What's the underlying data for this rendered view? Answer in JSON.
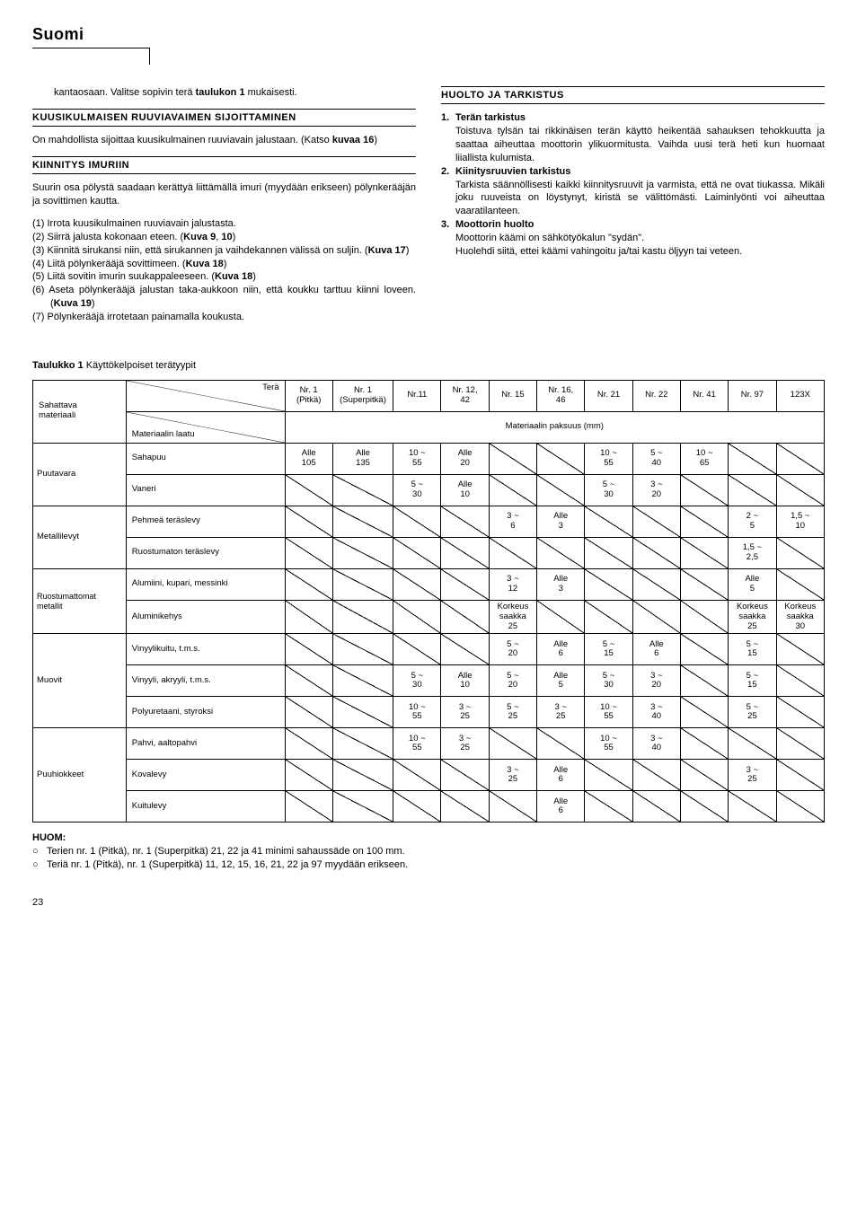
{
  "header": {
    "title": "Suomi"
  },
  "left": {
    "intro": {
      "prefix": "kantaosaan. Valitse sopivin terä ",
      "bold": "taulukon 1",
      "suffix": " mukaisesti."
    },
    "sec1": {
      "title": "KUUSIKULMAISEN RUUVIAVAIMEN SIJOITTAMINEN",
      "p1a": "On mahdollista sijoittaa kuusikulmainen ruuviavain jalustaan. (Katso ",
      "p1b": "kuvaa 16",
      "p1c": ")"
    },
    "sec2": {
      "title": "KIINNITYS IMURIIN",
      "p1": "Suurin osa pölystä saadaan kerättyä liittämällä imuri (myydään erikseen) pölynkerääjän ja sovittimen kautta.",
      "items": [
        {
          "n": "(1)",
          "t": "Irrota kuusikulmainen ruuviavain jalustasta."
        },
        {
          "n": "(2)",
          "t": "Siirrä jalusta kokonaan eteen. (",
          "b": "Kuva 9",
          "m": ", ",
          "b2": "10",
          "e": ")"
        },
        {
          "n": "(3)",
          "t": "Kiinnitä sirukansi niin, että sirukannen ja vaihdekannen välissä on suljin. (",
          "b": "Kuva 17",
          "e": ")"
        },
        {
          "n": "(4)",
          "t": "Liitä pölynkerääjä sovittimeen. (",
          "b": "Kuva 18",
          "e": ")"
        },
        {
          "n": "(5)",
          "t": "Liitä sovitin imurin suukappaleeseen. (",
          "b": "Kuva 18",
          "e": ")"
        },
        {
          "n": "(6)",
          "t": "Aseta pölynkerääjä jalustan taka-aukkoon niin, että koukku tarttuu kiinni loveen. (",
          "b": "Kuva 19",
          "e": ")"
        },
        {
          "n": "(7)",
          "t": "Pölynkerääjä irrotetaan painamalla koukusta."
        }
      ]
    }
  },
  "right": {
    "title": "HUOLTO JA TARKISTUS",
    "items": [
      {
        "n": "1.",
        "h": "Terän tarkistus",
        "t": "Toistuva tylsän tai rikkinäisen terän käyttö heikentää sahauksen tehokkuutta ja saattaa aiheuttaa moottorin ylikuormitusta. Vaihda uusi terä heti kun huomaat liiallista kulumista."
      },
      {
        "n": "2.",
        "h": "Kiinitysruuvien tarkistus",
        "t": "Tarkista säännöllisesti kaikki kiinnitysruuvit ja varmista, että ne ovat tiukassa. Mikäli joku ruuveista on löystynyt, kiristä se välittömästi. Laiminlyönti voi aiheuttaa vaaratilanteen."
      },
      {
        "n": "3.",
        "h": "Moottorin huolto",
        "t": "Moottorin käämi on sähkötyökalun \"sydän\".\nHuolehdi siitä, ettei käämi vahingoitu ja/tai kastu öljyyn tai veteen."
      }
    ]
  },
  "table": {
    "caption_b": "Taulukko 1",
    "caption_t": "   Käyttökelpoiset terätyypit",
    "diag_top": "Terä",
    "diag_bot": "Materiaalin laatu",
    "rowhead_left": "Sahattava materiaali",
    "cols": [
      "Nr. 1\n(Pitkä)",
      "Nr. 1\n(Superpitkä)",
      "Nr.11",
      "Nr. 12,\n42",
      "Nr. 15",
      "Nr. 16,\n46",
      "Nr. 21",
      "Nr. 22",
      "Nr. 41",
      "Nr. 97",
      "123X"
    ],
    "span_label": "Materiaalin paksuus (mm)",
    "groups": [
      {
        "cat": "Puutavara",
        "rows": [
          {
            "label": "Sahapuu",
            "cells": [
              "Alle\n105",
              "Alle\n135",
              "10 ~\n55",
              "Alle\n20",
              "",
              "",
              "10 ~\n55",
              "5 ~\n40",
              "10 ~\n65",
              "",
              ""
            ]
          },
          {
            "label": "Vaneri",
            "cells": [
              "",
              "",
              "5 ~\n30",
              "Alle\n10",
              "",
              "",
              "5 ~\n30",
              "3 ~\n20",
              "",
              "",
              ""
            ]
          }
        ]
      },
      {
        "cat": "Metallilevyt",
        "rows": [
          {
            "label": "Pehmeä teräslevy",
            "cells": [
              "",
              "",
              "",
              "",
              "3 ~\n6",
              "Alle\n3",
              "",
              "",
              "",
              "2 ~\n5",
              "1,5 ~\n10"
            ]
          },
          {
            "label": "Ruostumaton teräslevy",
            "cells": [
              "",
              "",
              "",
              "",
              "",
              "",
              "",
              "",
              "",
              "1,5 ~\n2,5",
              ""
            ]
          }
        ]
      },
      {
        "cat": "Ruostumattomat metallit",
        "rows": [
          {
            "label": "Alumiini, kupari, messinki",
            "cells": [
              "",
              "",
              "",
              "",
              "3 ~\n12",
              "Alle\n3",
              "",
              "",
              "",
              "Alle\n5",
              ""
            ]
          },
          {
            "label": "Aluminikehys",
            "cells": [
              "",
              "",
              "",
              "",
              "Korkeus\nsaakka\n25",
              "",
              "",
              "",
              "",
              "Korkeus\nsaakka\n25",
              "Korkeus\nsaakka\n30"
            ]
          }
        ]
      },
      {
        "cat": "Muovit",
        "rows": [
          {
            "label": "Vinyylikuitu, t.m.s.",
            "cells": [
              "",
              "",
              "",
              "",
              "5 ~\n20",
              "Alle\n6",
              "5 ~\n15",
              "Alle\n6",
              "",
              "5 ~\n15",
              ""
            ]
          },
          {
            "label": "Vinyyli, akryyli, t.m.s.",
            "cells": [
              "",
              "",
              "5 ~\n30",
              "Alle\n10",
              "5 ~\n20",
              "Alle\n5",
              "5 ~\n30",
              "3 ~\n20",
              "",
              "5 ~\n15",
              ""
            ]
          },
          {
            "label": "Polyuretaani, styroksi",
            "cells": [
              "",
              "",
              "10 ~\n55",
              "3 ~\n25",
              "5 ~\n25",
              "3 ~\n25",
              "10 ~\n55",
              "3 ~\n40",
              "",
              "5 ~\n25",
              ""
            ]
          }
        ]
      },
      {
        "cat": "Puuhiokkeet",
        "rows": [
          {
            "label": "Pahvi, aaltopahvi",
            "cells": [
              "",
              "",
              "10 ~\n55",
              "3 ~\n25",
              "",
              "",
              "10 ~\n55",
              "3 ~\n40",
              "",
              "",
              ""
            ]
          },
          {
            "label": "Kovalevy",
            "cells": [
              "",
              "",
              "",
              "",
              "3 ~\n25",
              "Alle\n6",
              "",
              "",
              "",
              "3 ~\n25",
              ""
            ]
          },
          {
            "label": "Kuitulevy",
            "cells": [
              "",
              "",
              "",
              "",
              "",
              "Alle\n6",
              "",
              "",
              "",
              "",
              ""
            ]
          }
        ]
      }
    ]
  },
  "huom": {
    "title": "HUOM:",
    "l1": "Terien nr. 1 (Pitkä), nr. 1 (Superpitkä) 21, 22 ja 41 minimi sahaussäde on 100 mm.",
    "l2": "Teriä nr. 1 (Pitkä), nr. 1 (Superpitkä) 11, 12, 15, 16, 21, 22 ja 97 myydään erikseen."
  },
  "pagenum": "23"
}
